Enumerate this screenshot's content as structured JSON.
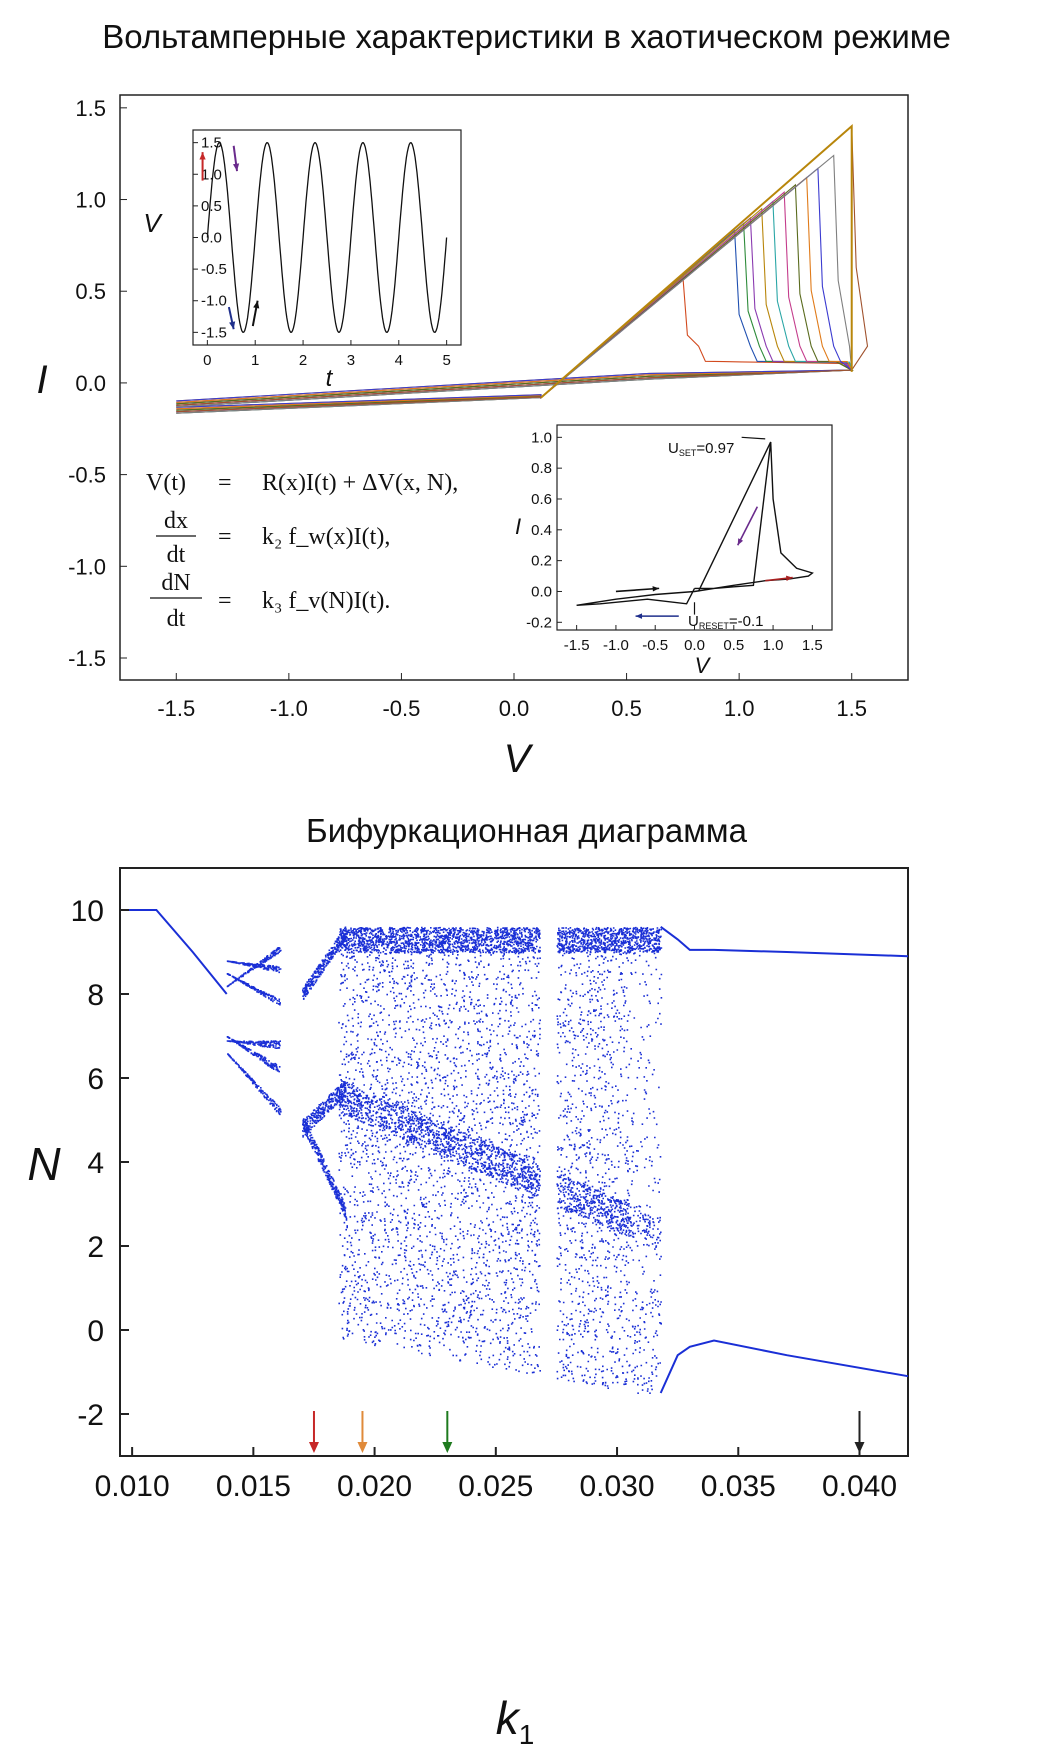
{
  "chart_data": [
    {
      "type": "line",
      "title": "Вольтамперные характеристики в хаотическом режиме",
      "xlabel": "V",
      "ylabel": "I",
      "xlim": [
        -1.75,
        1.75
      ],
      "ylim": [
        -1.62,
        1.57
      ],
      "xticks": [
        "-1.5",
        "-1.0",
        "-0.5",
        "0.0",
        "0.5",
        "1.0",
        "1.5"
      ],
      "yticks": [
        "1.5",
        "1.0",
        "0.5",
        "0.0",
        "-0.5",
        "-1.0",
        "-1.5"
      ],
      "set_peaks": {
        "v": [
          0.75,
          0.98,
          1.02,
          1.05,
          1.1,
          1.15,
          1.2,
          1.25,
          1.3,
          1.35,
          1.42,
          1.5
        ],
        "i": [
          0.58,
          0.83,
          0.87,
          0.9,
          0.95,
          0.99,
          1.04,
          1.08,
          1.12,
          1.17,
          1.24,
          1.4
        ]
      },
      "series_colors": [
        "#d24a1e",
        "#1f4fb0",
        "#2e8b3a",
        "#8a3ab0",
        "#b8860b",
        "#2aa6a6",
        "#c43c8c",
        "#5a6b1e",
        "#e07b1a",
        "#3b3bd0",
        "#7f7f7f",
        "#a0522d"
      ],
      "equations": [
        {
          "lhs": "V(t)",
          "eq": "=",
          "rhs": "R(x)I(t) + ΔV(x, N),"
        },
        {
          "lhs_num": "dx",
          "lhs_den": "dt",
          "eq": "=",
          "rhs": "k₂ f_w(x)I(t),"
        },
        {
          "lhs_num": "dN",
          "lhs_den": "dt",
          "eq": "=",
          "rhs": "k₃ f_v(N)I(t)."
        }
      ]
    },
    {
      "type": "line",
      "inset": "V(t)",
      "xlabel": "t",
      "ylabel": "V",
      "xlim": [
        -0.3,
        5.3
      ],
      "ylim": [
        -1.7,
        1.7
      ],
      "xticks": [
        "0",
        "1",
        "2",
        "3",
        "4",
        "5"
      ],
      "yticks": [
        "1.5",
        "1.0",
        "0.5",
        "0.0",
        "-0.5",
        "-1.0",
        "-1.5"
      ],
      "amplitude": 1.5,
      "period": 1.0,
      "t_range": [
        0,
        5
      ]
    },
    {
      "type": "line",
      "inset": "I-V loop",
      "xlabel": "V",
      "ylabel": "I",
      "xlim": [
        -1.75,
        1.75
      ],
      "ylim": [
        -0.25,
        1.08
      ],
      "xticks": [
        "-1.5",
        "-1.0",
        "-0.5",
        "0.0",
        "0.5",
        "1.0",
        "1.5"
      ],
      "yticks": [
        "1.0",
        "0.8",
        "0.6",
        "0.4",
        "0.2",
        "0.0",
        "-0.2"
      ],
      "annotations": [
        {
          "text": "U",
          "sub": "SET",
          "value": "=0.97"
        },
        {
          "text": "U",
          "sub": "RESET",
          "value": "=-0.1"
        }
      ],
      "loop": {
        "v": [
          0.0,
          0.25,
          0.5,
          0.75,
          0.97,
          1.0,
          1.1,
          1.3,
          1.5,
          1.45,
          1.2,
          0.9,
          0.5,
          0.0,
          -0.5,
          -1.0,
          -1.5,
          -1.2,
          -0.6,
          -0.1,
          0.0
        ],
        "i": [
          0.02,
          0.02,
          0.03,
          0.04,
          0.97,
          0.6,
          0.25,
          0.15,
          0.12,
          0.1,
          0.08,
          0.07,
          0.04,
          0.0,
          -0.02,
          -0.05,
          -0.09,
          -0.08,
          -0.05,
          -0.08,
          0.02
        ]
      }
    },
    {
      "type": "scatter",
      "title": "Бифуркационная диаграмма",
      "xlabel": "k",
      "xlabel_sub": "1",
      "ylabel": "N",
      "xlim": [
        0.0095,
        0.042
      ],
      "ylim": [
        -3.0,
        11.0
      ],
      "xticks": [
        "0.010",
        "0.015",
        "0.020",
        "0.025",
        "0.030",
        "0.035",
        "0.040"
      ],
      "yticks": [
        "10",
        "8",
        "6",
        "4",
        "2",
        "0",
        "-2"
      ],
      "color": "#1a2fd6",
      "branches": [
        {
          "name": "",
          "k": [
            0.0095,
            0.011,
            0.0125,
            0.0139
          ],
          "n": [
            10.0,
            10.0,
            9.0,
            8.0
          ]
        },
        {
          "name": "",
          "k": [
            0.0318,
            0.0325,
            0.033,
            0.034,
            0.037,
            0.042
          ],
          "n": [
            9.6,
            9.3,
            9.05,
            9.05,
            9.0,
            8.9
          ]
        },
        {
          "name": "",
          "k": [
            0.0318,
            0.0325,
            0.033,
            0.034,
            0.037,
            0.042
          ],
          "n": [
            -1.5,
            -0.6,
            -0.4,
            -0.25,
            -0.6,
            -1.1
          ]
        }
      ],
      "arrows": [
        {
          "k": 0.0175,
          "color": "#c62828"
        },
        {
          "k": 0.0195,
          "color": "#e08a3a"
        },
        {
          "k": 0.023,
          "color": "#1e7a1e"
        },
        {
          "k": 0.04,
          "color": "#222222"
        }
      ]
    }
  ]
}
